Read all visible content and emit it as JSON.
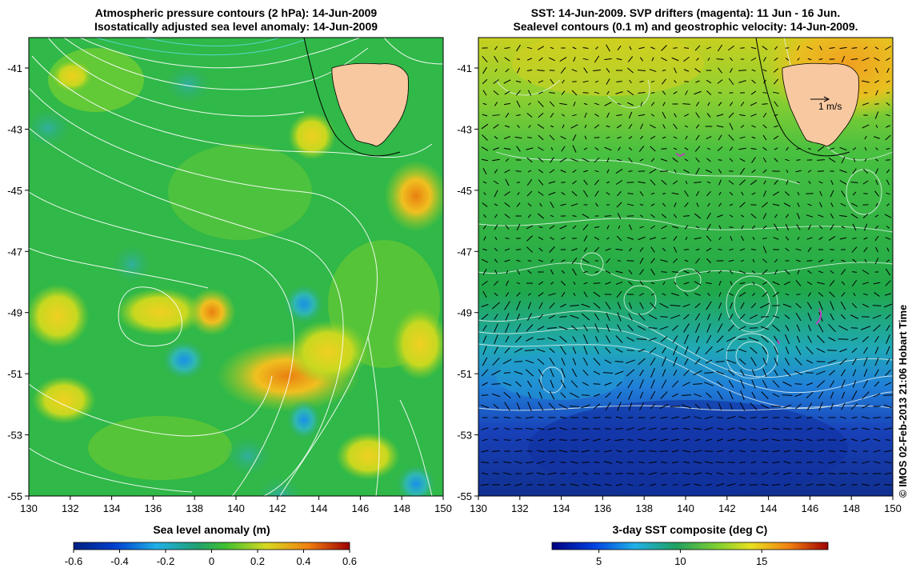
{
  "left_panel": {
    "title_line1": "Atmospheric pressure contours (2 hPa): 14-Jun-2009",
    "title_line2": "Isostatically adjusted sea level anomaly: 14-Jun-2009",
    "x_ticks": [
      "130",
      "132",
      "134",
      "136",
      "138",
      "140",
      "142",
      "144",
      "146",
      "148",
      "150"
    ],
    "y_ticks": [
      "-41",
      "-43",
      "-45",
      "-47",
      "-49",
      "-51",
      "-53",
      "-55"
    ],
    "colorbar_title": "Sea level anomaly (m)",
    "colorbar_ticks": [
      "-0.6",
      "-0.4",
      "-0.2",
      "0",
      "0.2",
      "0.4",
      "0.6"
    ]
  },
  "right_panel": {
    "title_line1": "SST: 14-Jun-2009. SVP drifters (magenta): 11 Jun - 16 Jun.",
    "title_line2": "Sealevel contours (0.1 m) and geostrophic velocity: 14-Jun-2009.",
    "x_ticks": [
      "130",
      "132",
      "134",
      "136",
      "138",
      "140",
      "142",
      "144",
      "146",
      "148",
      "150"
    ],
    "y_ticks": [
      "-41",
      "-43",
      "-45",
      "-47",
      "-49",
      "-51",
      "-53",
      "-55"
    ],
    "scale_label": "1 m/s",
    "colorbar_title": "3-day SST composite (deg C)",
    "colorbar_ticks": [
      "5",
      "10",
      "15"
    ]
  },
  "credit": "© IMOS 02-Feb-2013 21:06 Hobart Time",
  "colors": {
    "land": "#f8c8a0",
    "ocean_mid": "#22b03c",
    "contour": "#ffffff",
    "drifter": "#c040c0"
  }
}
